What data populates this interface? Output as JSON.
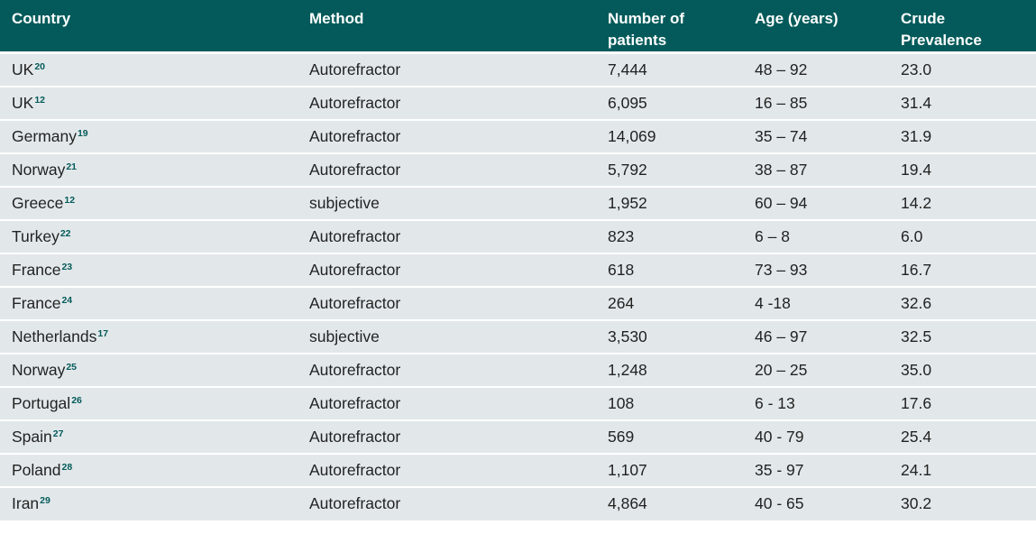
{
  "table": {
    "headers": [
      "Country",
      "Method",
      "Number of patients",
      "Age (years)",
      "Crude Prevalence"
    ],
    "rows": [
      {
        "country": "UK",
        "ref": "20",
        "method": "Autorefractor",
        "patients": "7,444",
        "age": "48 – 92",
        "prevalence": "23.0"
      },
      {
        "country": "UK",
        "ref": "12",
        "method": "Autorefractor",
        "patients": "6,095",
        "age": "16 – 85",
        "prevalence": "31.4"
      },
      {
        "country": "Germany",
        "ref": "19",
        "method": "Autorefractor",
        "patients": "14,069",
        "age": "35 – 74",
        "prevalence": "31.9"
      },
      {
        "country": "Norway",
        "ref": "21",
        "method": "Autorefractor",
        "patients": "5,792",
        "age": "38 – 87",
        "prevalence": "19.4"
      },
      {
        "country": "Greece",
        "ref": "12",
        "method": "subjective",
        "patients": "1,952",
        "age": "60 – 94",
        "prevalence": "14.2"
      },
      {
        "country": "Turkey",
        "ref": "22",
        "method": "Autorefractor",
        "patients": "823",
        "age": "6 – 8",
        "prevalence": "6.0"
      },
      {
        "country": "France",
        "ref": "23",
        "method": "Autorefractor",
        "patients": "618",
        "age": "73 – 93",
        "prevalence": "16.7"
      },
      {
        "country": "France",
        "ref": "24",
        "method": "Autorefractor",
        "patients": "264",
        "age": "4 -18",
        "prevalence": "32.6"
      },
      {
        "country": "Netherlands",
        "ref": "17",
        "method": "subjective",
        "patients": "3,530",
        "age": "46 – 97",
        "prevalence": "32.5"
      },
      {
        "country": "Norway",
        "ref": "25",
        "method": "Autorefractor",
        "patients": "1,248",
        "age": "20 – 25",
        "prevalence": "35.0"
      },
      {
        "country": "Portugal",
        "ref": "26",
        "method": "Autorefractor",
        "patients": "108",
        "age": "6 - 13",
        "prevalence": "17.6"
      },
      {
        "country": "Spain",
        "ref": "27",
        "method": "Autorefractor",
        "patients": "569",
        "age": "40 - 79",
        "prevalence": "25.4"
      },
      {
        "country": "Poland",
        "ref": "28",
        "method": "Autorefractor",
        "patients": "1,107",
        "age": "35 - 97",
        "prevalence": "24.1"
      },
      {
        "country": "Iran",
        "ref": "29",
        "method": "Autorefractor",
        "patients": "4,864",
        "age": "40 - 65",
        "prevalence": "30.2"
      }
    ]
  },
  "colors": {
    "header_bg": "#045a5a",
    "header_text": "#ffffff",
    "row_bg": "#e2e8ea",
    "ref_color": "#045a5a"
  }
}
